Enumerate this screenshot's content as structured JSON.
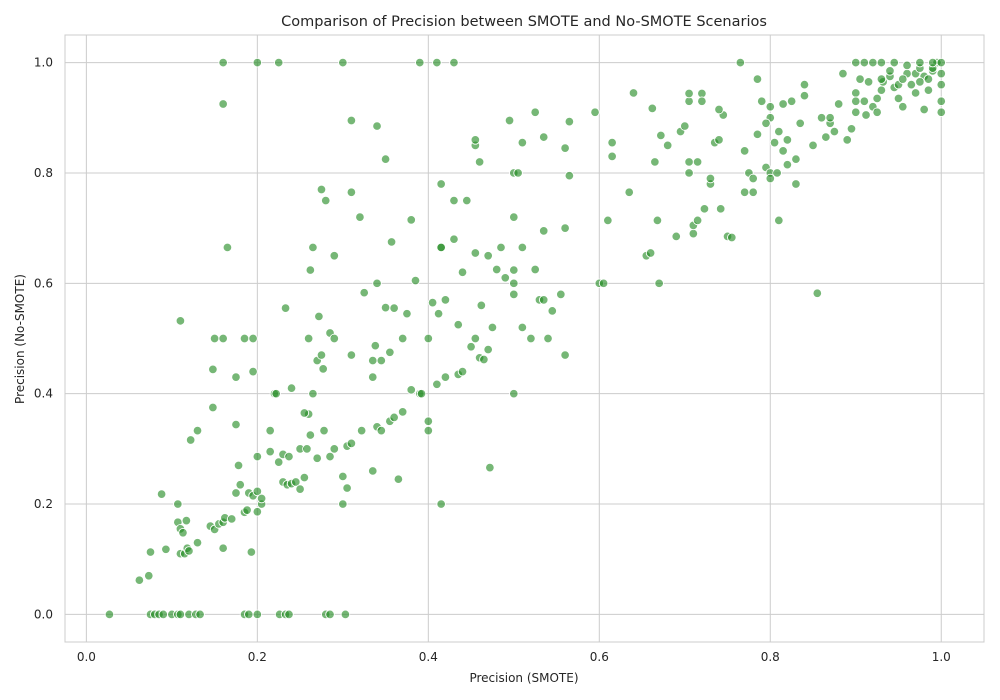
{
  "chart_data": {
    "type": "scatter",
    "title": "Comparison of Precision between SMOTE and No-SMOTE Scenarios",
    "xlabel": "Precision (SMOTE)",
    "ylabel": "Precision (No-SMOTE)",
    "xlim": [
      -0.025,
      1.05
    ],
    "ylim": [
      -0.05,
      1.05
    ],
    "xticks": [
      "0.0",
      "0.2",
      "0.4",
      "0.6",
      "0.8",
      "1.0"
    ],
    "yticks": [
      "0.0",
      "0.2",
      "0.4",
      "0.6",
      "0.8",
      "1.0"
    ],
    "grid": true,
    "color": "#228b22",
    "points": [
      [
        0.027,
        0.0
      ],
      [
        0.075,
        0.0
      ],
      [
        0.08,
        0.0
      ],
      [
        0.085,
        0.0
      ],
      [
        0.09,
        0.0
      ],
      [
        0.1,
        0.0
      ],
      [
        0.107,
        0.0
      ],
      [
        0.11,
        0.0
      ],
      [
        0.12,
        0.0
      ],
      [
        0.128,
        0.0
      ],
      [
        0.133,
        0.0
      ],
      [
        0.185,
        0.0
      ],
      [
        0.19,
        0.0
      ],
      [
        0.2,
        0.0
      ],
      [
        0.226,
        0.0
      ],
      [
        0.233,
        0.0
      ],
      [
        0.237,
        0.0
      ],
      [
        0.28,
        0.0
      ],
      [
        0.285,
        0.0
      ],
      [
        0.303,
        0.0
      ],
      [
        0.062,
        0.062
      ],
      [
        0.073,
        0.07
      ],
      [
        0.075,
        0.113
      ],
      [
        0.088,
        0.218
      ],
      [
        0.093,
        0.118
      ],
      [
        0.107,
        0.167
      ],
      [
        0.107,
        0.2
      ],
      [
        0.11,
        0.155
      ],
      [
        0.11,
        0.11
      ],
      [
        0.113,
        0.148
      ],
      [
        0.115,
        0.11
      ],
      [
        0.117,
        0.17
      ],
      [
        0.118,
        0.12
      ],
      [
        0.12,
        0.115
      ],
      [
        0.122,
        0.316
      ],
      [
        0.13,
        0.333
      ],
      [
        0.13,
        0.13
      ],
      [
        0.145,
        0.16
      ],
      [
        0.148,
        0.375
      ],
      [
        0.15,
        0.154
      ],
      [
        0.155,
        0.164
      ],
      [
        0.16,
        0.167
      ],
      [
        0.16,
        0.12
      ],
      [
        0.162,
        0.175
      ],
      [
        0.17,
        0.173
      ],
      [
        0.175,
        0.22
      ],
      [
        0.175,
        0.344
      ],
      [
        0.178,
        0.27
      ],
      [
        0.18,
        0.235
      ],
      [
        0.185,
        0.185
      ],
      [
        0.188,
        0.189
      ],
      [
        0.19,
        0.22
      ],
      [
        0.193,
        0.113
      ],
      [
        0.195,
        0.215
      ],
      [
        0.2,
        0.223
      ],
      [
        0.2,
        0.186
      ],
      [
        0.205,
        0.2
      ],
      [
        0.205,
        0.21
      ],
      [
        0.215,
        0.295
      ],
      [
        0.2,
        0.286
      ],
      [
        0.22,
        0.4
      ],
      [
        0.215,
        0.333
      ],
      [
        0.225,
        0.276
      ],
      [
        0.23,
        0.29
      ],
      [
        0.23,
        0.24
      ],
      [
        0.235,
        0.235
      ],
      [
        0.237,
        0.286
      ],
      [
        0.24,
        0.237
      ],
      [
        0.245,
        0.24
      ],
      [
        0.25,
        0.3
      ],
      [
        0.25,
        0.227
      ],
      [
        0.255,
        0.248
      ],
      [
        0.258,
        0.3
      ],
      [
        0.26,
        0.363
      ],
      [
        0.262,
        0.325
      ],
      [
        0.265,
        0.4
      ],
      [
        0.27,
        0.283
      ],
      [
        0.278,
        0.333
      ],
      [
        0.285,
        0.286
      ],
      [
        0.29,
        0.3
      ],
      [
        0.3,
        0.25
      ],
      [
        0.3,
        0.2
      ],
      [
        0.305,
        0.229
      ],
      [
        0.305,
        0.305
      ],
      [
        0.31,
        0.31
      ],
      [
        0.322,
        0.333
      ],
      [
        0.335,
        0.26
      ],
      [
        0.335,
        0.43
      ],
      [
        0.34,
        0.34
      ],
      [
        0.345,
        0.333
      ],
      [
        0.355,
        0.35
      ],
      [
        0.36,
        0.357
      ],
      [
        0.365,
        0.245
      ],
      [
        0.37,
        0.367
      ],
      [
        0.38,
        0.407
      ],
      [
        0.39,
        0.4
      ],
      [
        0.392,
        0.4
      ],
      [
        0.4,
        0.35
      ],
      [
        0.4,
        0.333
      ],
      [
        0.11,
        0.532
      ],
      [
        0.148,
        0.444
      ],
      [
        0.15,
        0.5
      ],
      [
        0.16,
        0.5
      ],
      [
        0.165,
        0.665
      ],
      [
        0.175,
        0.43
      ],
      [
        0.185,
        0.5
      ],
      [
        0.195,
        0.5
      ],
      [
        0.195,
        0.44
      ],
      [
        0.222,
        0.4
      ],
      [
        0.233,
        0.555
      ],
      [
        0.24,
        0.41
      ],
      [
        0.255,
        0.365
      ],
      [
        0.26,
        0.5
      ],
      [
        0.262,
        0.624
      ],
      [
        0.265,
        0.665
      ],
      [
        0.27,
        0.46
      ],
      [
        0.272,
        0.54
      ],
      [
        0.275,
        0.47
      ],
      [
        0.277,
        0.445
      ],
      [
        0.285,
        0.51
      ],
      [
        0.29,
        0.5
      ],
      [
        0.29,
        0.65
      ],
      [
        0.31,
        0.47
      ],
      [
        0.325,
        0.583
      ],
      [
        0.335,
        0.46
      ],
      [
        0.338,
        0.487
      ],
      [
        0.34,
        0.6
      ],
      [
        0.345,
        0.46
      ],
      [
        0.35,
        0.556
      ],
      [
        0.355,
        0.475
      ],
      [
        0.357,
        0.675
      ],
      [
        0.36,
        0.555
      ],
      [
        0.37,
        0.5
      ],
      [
        0.375,
        0.545
      ],
      [
        0.38,
        0.715
      ],
      [
        0.385,
        0.605
      ],
      [
        0.4,
        0.5
      ],
      [
        0.405,
        0.565
      ],
      [
        0.41,
        0.417
      ],
      [
        0.412,
        0.545
      ],
      [
        0.415,
        0.665
      ],
      [
        0.42,
        0.43
      ],
      [
        0.42,
        0.57
      ],
      [
        0.43,
        0.75
      ],
      [
        0.435,
        0.525
      ],
      [
        0.435,
        0.435
      ],
      [
        0.44,
        0.44
      ],
      [
        0.445,
        0.75
      ],
      [
        0.45,
        0.485
      ],
      [
        0.455,
        0.5
      ],
      [
        0.46,
        0.465
      ],
      [
        0.462,
        0.56
      ],
      [
        0.465,
        0.462
      ],
      [
        0.47,
        0.48
      ],
      [
        0.475,
        0.52
      ],
      [
        0.48,
        0.625
      ],
      [
        0.49,
        0.61
      ],
      [
        0.5,
        0.6
      ],
      [
        0.5,
        0.624
      ],
      [
        0.5,
        0.4
      ],
      [
        0.51,
        0.52
      ],
      [
        0.52,
        0.5
      ],
      [
        0.525,
        0.625
      ],
      [
        0.53,
        0.57
      ],
      [
        0.535,
        0.57
      ],
      [
        0.54,
        0.5
      ],
      [
        0.545,
        0.55
      ],
      [
        0.555,
        0.58
      ],
      [
        0.56,
        0.47
      ],
      [
        0.6,
        0.6
      ],
      [
        0.472,
        0.266
      ],
      [
        0.415,
        0.2
      ],
      [
        0.46,
        0.82
      ],
      [
        0.5,
        0.8
      ],
      [
        0.455,
        0.85
      ],
      [
        0.455,
        0.86
      ],
      [
        0.35,
        0.825
      ],
      [
        0.31,
        0.765
      ],
      [
        0.275,
        0.77
      ],
      [
        0.28,
        0.75
      ],
      [
        0.32,
        0.72
      ],
      [
        0.34,
        0.885
      ],
      [
        0.31,
        0.895
      ],
      [
        0.415,
        0.78
      ],
      [
        0.415,
        0.665
      ],
      [
        0.43,
        0.68
      ],
      [
        0.455,
        0.655
      ],
      [
        0.47,
        0.65
      ],
      [
        0.485,
        0.665
      ],
      [
        0.495,
        0.895
      ],
      [
        0.505,
        0.8
      ],
      [
        0.51,
        0.855
      ],
      [
        0.525,
        0.91
      ],
      [
        0.535,
        0.865
      ],
      [
        0.5,
        0.72
      ],
      [
        0.51,
        0.665
      ],
      [
        0.535,
        0.695
      ],
      [
        0.56,
        0.7
      ],
      [
        0.56,
        0.845
      ],
      [
        0.565,
        0.893
      ],
      [
        0.565,
        0.795
      ],
      [
        0.595,
        0.91
      ],
      [
        0.61,
        0.714
      ],
      [
        0.615,
        0.83
      ],
      [
        0.615,
        0.855
      ],
      [
        0.635,
        0.765
      ],
      [
        0.64,
        0.945
      ],
      [
        0.655,
        0.65
      ],
      [
        0.66,
        0.655
      ],
      [
        0.662,
        0.917
      ],
      [
        0.665,
        0.82
      ],
      [
        0.67,
        0.6
      ],
      [
        0.668,
        0.714
      ],
      [
        0.672,
        0.868
      ],
      [
        0.68,
        0.85
      ],
      [
        0.69,
        0.685
      ],
      [
        0.695,
        0.875
      ],
      [
        0.7,
        0.885
      ],
      [
        0.705,
        0.8
      ],
      [
        0.705,
        0.82
      ],
      [
        0.71,
        0.69
      ],
      [
        0.71,
        0.705
      ],
      [
        0.715,
        0.82
      ],
      [
        0.715,
        0.714
      ],
      [
        0.72,
        0.944
      ],
      [
        0.723,
        0.735
      ],
      [
        0.73,
        0.78
      ],
      [
        0.73,
        0.79
      ],
      [
        0.735,
        0.855
      ],
      [
        0.74,
        0.86
      ],
      [
        0.742,
        0.735
      ],
      [
        0.745,
        0.905
      ],
      [
        0.75,
        0.685
      ],
      [
        0.755,
        0.683
      ],
      [
        0.705,
        0.93
      ],
      [
        0.705,
        0.944
      ],
      [
        0.72,
        0.93
      ],
      [
        0.74,
        0.915
      ],
      [
        0.765,
        1.0
      ],
      [
        0.77,
        0.765
      ],
      [
        0.775,
        0.8
      ],
      [
        0.78,
        0.79
      ],
      [
        0.78,
        0.765
      ],
      [
        0.785,
        0.97
      ],
      [
        0.79,
        0.93
      ],
      [
        0.795,
        0.81
      ],
      [
        0.8,
        0.8
      ],
      [
        0.8,
        0.9
      ],
      [
        0.8,
        0.79
      ],
      [
        0.805,
        0.855
      ],
      [
        0.808,
        0.8
      ],
      [
        0.81,
        0.875
      ],
      [
        0.81,
        0.714
      ],
      [
        0.815,
        0.84
      ],
      [
        0.815,
        0.925
      ],
      [
        0.82,
        0.815
      ],
      [
        0.825,
        0.93
      ],
      [
        0.83,
        0.78
      ],
      [
        0.83,
        0.825
      ],
      [
        0.835,
        0.89
      ],
      [
        0.84,
        0.94
      ],
      [
        0.85,
        0.85
      ],
      [
        0.855,
        0.582
      ],
      [
        0.86,
        0.9
      ],
      [
        0.865,
        0.865
      ],
      [
        0.87,
        0.89
      ],
      [
        0.875,
        0.875
      ],
      [
        0.88,
        0.925
      ],
      [
        0.885,
        0.98
      ],
      [
        0.89,
        0.86
      ],
      [
        0.895,
        0.88
      ],
      [
        0.9,
        0.91
      ],
      [
        0.9,
        0.945
      ],
      [
        0.905,
        0.97
      ],
      [
        0.91,
        0.93
      ],
      [
        0.912,
        0.905
      ],
      [
        0.915,
        0.965
      ],
      [
        0.92,
        0.92
      ],
      [
        0.925,
        0.935
      ],
      [
        0.93,
        0.95
      ],
      [
        0.932,
        0.965
      ],
      [
        0.94,
        0.975
      ],
      [
        0.945,
        0.955
      ],
      [
        0.95,
        0.935
      ],
      [
        0.955,
        0.92
      ],
      [
        0.96,
        0.98
      ],
      [
        0.965,
        0.96
      ],
      [
        0.97,
        0.98
      ],
      [
        0.975,
        0.99
      ],
      [
        0.98,
        0.915
      ],
      [
        0.985,
        0.95
      ],
      [
        0.99,
        0.985
      ],
      [
        0.995,
        1.0
      ],
      [
        1.0,
        0.91
      ],
      [
        1.0,
        0.93
      ],
      [
        1.0,
        0.96
      ],
      [
        1.0,
        0.98
      ],
      [
        1.0,
        1.0
      ],
      [
        0.99,
        0.99
      ],
      [
        0.98,
        0.975
      ],
      [
        0.97,
        0.945
      ],
      [
        0.96,
        0.995
      ],
      [
        0.95,
        0.96
      ],
      [
        0.94,
        0.985
      ],
      [
        0.93,
        0.97
      ],
      [
        0.92,
        1.0
      ],
      [
        0.91,
        1.0
      ],
      [
        0.9,
        1.0
      ],
      [
        0.93,
        1.0
      ],
      [
        0.945,
        1.0
      ],
      [
        0.975,
        1.0
      ],
      [
        0.99,
        1.0
      ],
      [
        0.16,
        1.0
      ],
      [
        0.2,
        1.0
      ],
      [
        0.225,
        1.0
      ],
      [
        0.3,
        1.0
      ],
      [
        0.39,
        1.0
      ],
      [
        0.41,
        1.0
      ],
      [
        0.43,
        1.0
      ],
      [
        0.16,
        0.925
      ],
      [
        0.44,
        0.62
      ],
      [
        0.5,
        0.58
      ],
      [
        0.605,
        0.6
      ],
      [
        0.785,
        0.87
      ],
      [
        0.795,
        0.89
      ],
      [
        0.77,
        0.84
      ],
      [
        0.8,
        0.92
      ],
      [
        0.82,
        0.86
      ],
      [
        0.84,
        0.96
      ],
      [
        0.87,
        0.9
      ],
      [
        0.9,
        0.93
      ],
      [
        0.925,
        0.91
      ],
      [
        0.955,
        0.97
      ],
      [
        0.985,
        0.97
      ],
      [
        0.975,
        0.965
      ]
    ]
  }
}
